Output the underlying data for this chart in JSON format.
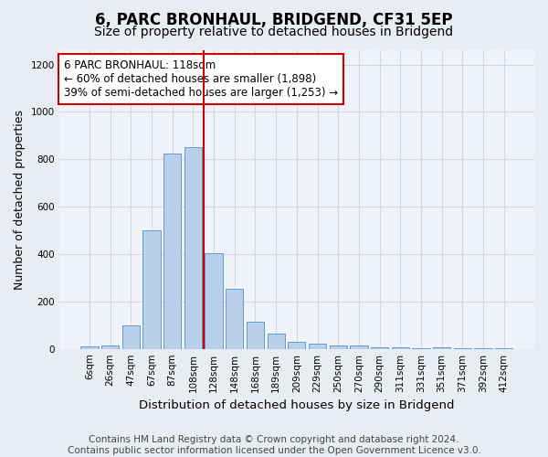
{
  "title": "6, PARC BRONHAUL, BRIDGEND, CF31 5EP",
  "subtitle": "Size of property relative to detached houses in Bridgend",
  "xlabel": "Distribution of detached houses by size in Bridgend",
  "ylabel": "Number of detached properties",
  "footer_line1": "Contains HM Land Registry data © Crown copyright and database right 2024.",
  "footer_line2": "Contains public sector information licensed under the Open Government Licence v3.0.",
  "bar_labels": [
    "6sqm",
    "26sqm",
    "47sqm",
    "67sqm",
    "87sqm",
    "108sqm",
    "128sqm",
    "148sqm",
    "168sqm",
    "189sqm",
    "209sqm",
    "229sqm",
    "250sqm",
    "270sqm",
    "290sqm",
    "311sqm",
    "331sqm",
    "351sqm",
    "371sqm",
    "392sqm",
    "412sqm"
  ],
  "bar_values": [
    10,
    13,
    100,
    500,
    825,
    850,
    405,
    255,
    115,
    65,
    30,
    20,
    13,
    13,
    7,
    5,
    3,
    8,
    3,
    2,
    1
  ],
  "bar_color": "#b8d0ea",
  "bar_edge_color": "#6699cc",
  "grid_color": "#d0d8e4",
  "bg_color": "#eaecf4",
  "plot_bg_color": "#f0f4fa",
  "annotation_line1": "6 PARC BRONHAUL: 118sqm",
  "annotation_line2": "← 60% of detached houses are smaller (1,898)",
  "annotation_line3": "39% of semi-detached houses are larger (1,253) →",
  "annotation_box_color": "#ffffff",
  "annotation_border_color": "#cc0000",
  "vline_color": "#cc0000",
  "vline_x": 5.5,
  "ylim": [
    0,
    1260
  ],
  "yticks": [
    0,
    200,
    400,
    600,
    800,
    1000,
    1200
  ],
  "title_fontsize": 12,
  "subtitle_fontsize": 10,
  "xlabel_fontsize": 9.5,
  "ylabel_fontsize": 9,
  "tick_fontsize": 7.5,
  "annotation_fontsize": 8.5,
  "footer_fontsize": 7.5
}
